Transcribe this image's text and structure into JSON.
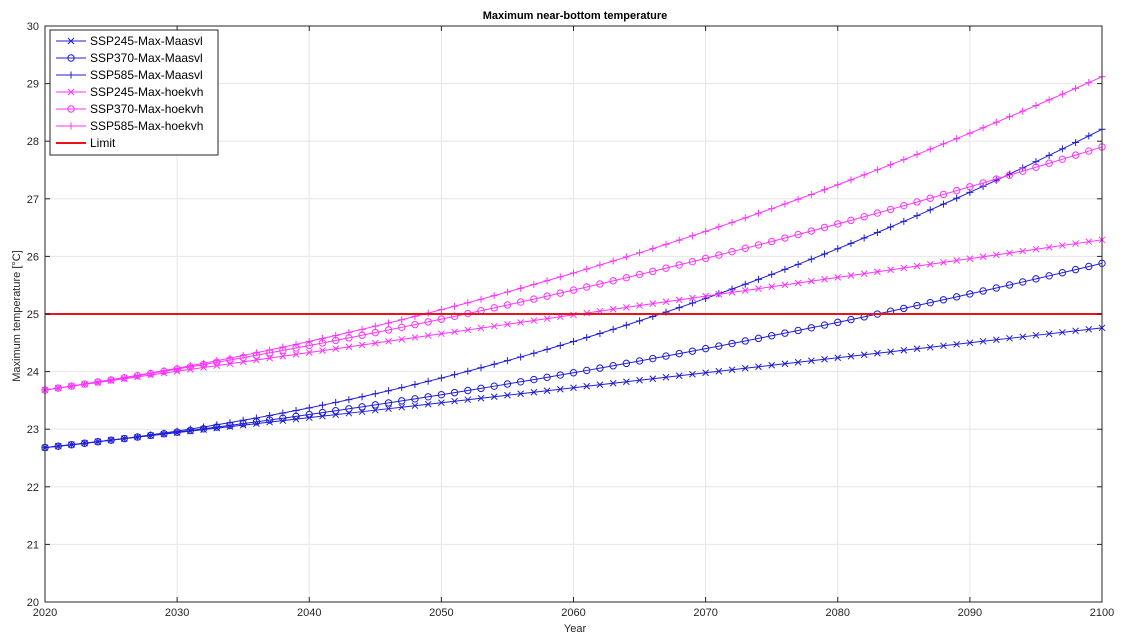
{
  "chart_data": {
    "type": "line",
    "title": "Maximum near-bottom temperature",
    "xlabel": "Year",
    "ylabel": "Maximum temperature [°C]",
    "xlim": [
      2020,
      2100
    ],
    "ylim": [
      20,
      30
    ],
    "xticks": [
      2020,
      2030,
      2040,
      2050,
      2060,
      2070,
      2080,
      2090,
      2100
    ],
    "yticks": [
      20,
      21,
      22,
      23,
      24,
      25,
      26,
      27,
      28,
      29,
      30
    ],
    "grid": true,
    "legend_position": "top-left",
    "x_step": 1,
    "series": [
      {
        "name": "SSP245-Max-Maasvl",
        "color": "#1f1fd6",
        "marker": "x",
        "start": 22.68,
        "rate": 0.026,
        "accel": 0.0
      },
      {
        "name": "SSP370-Max-Maasvl",
        "color": "#1f1fd6",
        "marker": "o",
        "start": 22.68,
        "rate": 0.025,
        "accel": 0.0001875
      },
      {
        "name": "SSP585-Max-Maasvl",
        "color": "#1f1fd6",
        "marker": "+",
        "start": 22.68,
        "rate": 0.023,
        "accel": 0.000576
      },
      {
        "name": "SSP245-Max-hoekvh",
        "color": "#ff33ff",
        "marker": "x",
        "start": 23.68,
        "rate": 0.0326,
        "accel": 0.0
      },
      {
        "name": "SSP370-Max-hoekvh",
        "color": "#ff33ff",
        "marker": "o",
        "start": 23.68,
        "rate": 0.034,
        "accel": 0.0002344
      },
      {
        "name": "SSP585-Max-hoekvh",
        "color": "#ff33ff",
        "marker": "+",
        "start": 23.68,
        "rate": 0.0336,
        "accel": 0.00043
      },
      {
        "name": "Limit",
        "color": "#e8141c",
        "marker": "none",
        "constant": 25
      }
    ]
  }
}
